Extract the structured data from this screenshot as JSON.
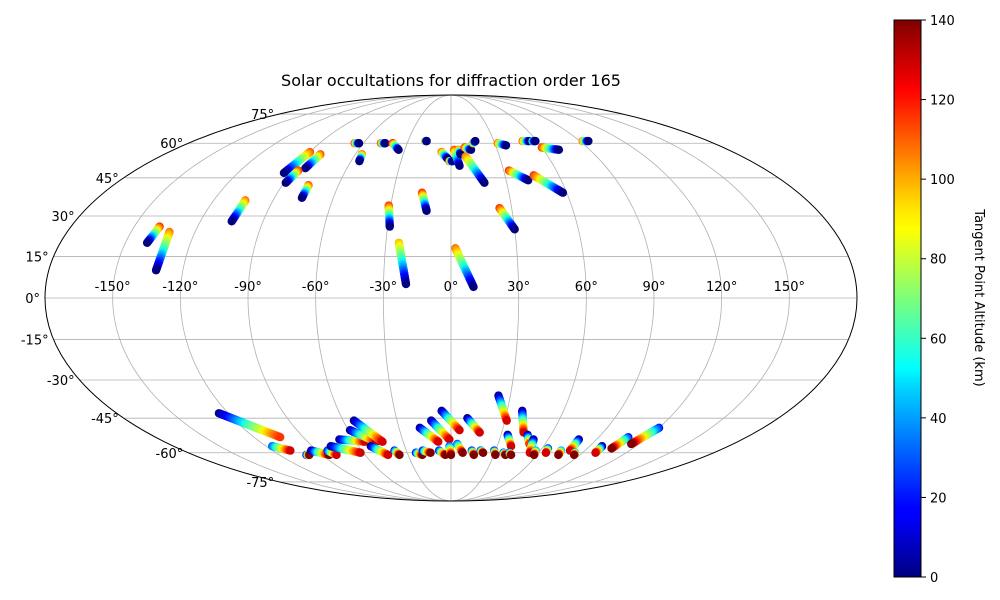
{
  "chart_data": {
    "type": "scatter",
    "projection": "mollweide",
    "title": "Solar occultations for diffraction order 165",
    "lon_tick_labels": [
      "-150°",
      "-120°",
      "-90°",
      "-60°",
      "-30°",
      "0°",
      "30°",
      "60°",
      "90°",
      "120°",
      "150°"
    ],
    "lat_tick_labels": [
      "75°",
      "60°",
      "45°",
      "30°",
      "15°",
      "0°",
      "-15°",
      "-30°",
      "-45°",
      "-60°",
      "-75°"
    ],
    "lon_ticks": [
      -150,
      -120,
      -90,
      -60,
      -30,
      0,
      30,
      60,
      90,
      120,
      150
    ],
    "lat_ticks": [
      75,
      60,
      45,
      30,
      15,
      0,
      -15,
      -30,
      -45,
      -60,
      -75
    ],
    "grid": true,
    "colorbar": {
      "label": "Tangent Point Altitude (km)",
      "colormap": "jet",
      "range": [
        0,
        140
      ],
      "ticks": [
        0,
        20,
        40,
        60,
        80,
        100,
        120,
        140
      ],
      "tick_labels": [
        "0",
        "20",
        "40",
        "60",
        "80",
        "100",
        "120",
        "140"
      ]
    },
    "tracks": [
      {
        "lon0": -138,
        "lat0": 26,
        "lon1": -140,
        "lat1": 20,
        "alt0": 120,
        "alt1": 0
      },
      {
        "lon0": -132,
        "lat0": 24,
        "lon1": -132,
        "lat1": 10,
        "alt0": 110,
        "alt1": 0
      },
      {
        "lon0": -104,
        "lat0": 36,
        "lon1": -105,
        "lat1": 28,
        "alt0": 110,
        "alt1": 0
      },
      {
        "lon0": -90,
        "lat0": 56,
        "lon1": -94,
        "lat1": 47,
        "alt0": 115,
        "alt1": 0
      },
      {
        "lon0": -82,
        "lat0": 55,
        "lon1": -84,
        "lat1": 49,
        "alt0": 115,
        "alt1": 0
      },
      {
        "lon0": -87,
        "lat0": 48,
        "lon1": -89,
        "lat1": 43,
        "alt0": 120,
        "alt1": 0
      },
      {
        "lon0": -76,
        "lat0": 42,
        "lon1": -76,
        "lat1": 37,
        "alt0": 115,
        "alt1": 0
      },
      {
        "lon0": -66,
        "lat0": 60,
        "lon1": -63,
        "lat1": 60,
        "alt0": 120,
        "alt1": 0
      },
      {
        "lon0": -56,
        "lat0": 55,
        "lon1": -55,
        "lat1": 52,
        "alt0": 110,
        "alt1": 0
      },
      {
        "lon0": -48,
        "lat0": 60,
        "lon1": -45,
        "lat1": 60,
        "alt0": 120,
        "alt1": 0
      },
      {
        "lon0": -40,
        "lat0": 60,
        "lon1": -34,
        "lat1": 57,
        "alt0": 120,
        "alt1": 0
      },
      {
        "lon0": -18,
        "lat0": 61,
        "lon1": -17,
        "lat1": 61,
        "alt0": 110,
        "alt1": 0
      },
      {
        "lon0": -31,
        "lat0": 34,
        "lon1": -29,
        "lat1": 26,
        "alt0": 120,
        "alt1": 0
      },
      {
        "lon0": -15,
        "lat0": 39,
        "lon1": -12,
        "lat1": 32,
        "alt0": 120,
        "alt1": 0
      },
      {
        "lon0": -24,
        "lat0": 20,
        "lon1": -20,
        "lat1": 5,
        "alt0": 100,
        "alt1": 0
      },
      {
        "lon0": -6,
        "lat0": 56,
        "lon1": -2,
        "lat1": 53,
        "alt0": 110,
        "alt1": 0
      },
      {
        "lon0": -1,
        "lat0": 52,
        "lon1": 1,
        "lat1": 52,
        "alt0": 120,
        "alt1": 0
      },
      {
        "lon0": 2,
        "lat0": 57,
        "lon1": 5,
        "lat1": 50,
        "alt0": 115,
        "alt1": 0
      },
      {
        "lon0": 5,
        "lat0": 57,
        "lon1": 6,
        "lat1": 55,
        "alt0": 110,
        "alt1": 0
      },
      {
        "lon0": 9,
        "lat0": 58,
        "lon1": 13,
        "lat1": 57,
        "alt0": 120,
        "alt1": 0
      },
      {
        "lon0": 15,
        "lat0": 60,
        "lon1": 17,
        "lat1": 61,
        "alt0": 110,
        "alt1": 0
      },
      {
        "lon0": 9,
        "lat0": 54,
        "lon1": 18,
        "lat1": 43,
        "alt0": 110,
        "alt1": 0
      },
      {
        "lon0": 2,
        "lat0": 18,
        "lon1": 10,
        "lat1": 4,
        "alt0": 110,
        "alt1": 0
      },
      {
        "lon0": 24,
        "lat0": 33,
        "lon1": 30,
        "lat1": 25,
        "alt0": 120,
        "alt1": 0
      },
      {
        "lon0": 32,
        "lat0": 60,
        "lon1": 37,
        "lat1": 59,
        "alt0": 110,
        "alt1": 0
      },
      {
        "lon0": 33,
        "lat0": 48,
        "lon1": 42,
        "lat1": 44,
        "alt0": 120,
        "alt1": 0
      },
      {
        "lon0": 50,
        "lat0": 61,
        "lon1": 55,
        "lat1": 61,
        "alt0": 110,
        "alt1": 0
      },
      {
        "lon0": 57,
        "lat0": 61,
        "lon1": 59,
        "lat1": 61,
        "alt0": 60,
        "alt1": 0
      },
      {
        "lon0": 60,
        "lat0": 58,
        "lon1": 70,
        "lat1": 57,
        "alt0": 120,
        "alt1": 0
      },
      {
        "lon0": 46,
        "lat0": 46,
        "lon1": 58,
        "lat1": 39,
        "alt0": 120,
        "alt1": 0
      },
      {
        "lon0": 92,
        "lat0": 61,
        "lon1": 96,
        "lat1": 61,
        "alt0": 110,
        "alt1": 0
      },
      {
        "lon0": -125,
        "lat0": -43,
        "lon1": -104,
        "lat1": -53,
        "alt0": 0,
        "alt1": 120
      },
      {
        "lon0": -116,
        "lat0": -57,
        "lon1": -108,
        "lat1": -59,
        "alt0": 30,
        "alt1": 130
      },
      {
        "lon0": -101,
        "lat0": -61,
        "lon1": -99,
        "lat1": -61,
        "alt0": 0,
        "alt1": 140
      },
      {
        "lon0": -94,
        "lat0": -59,
        "lon1": -85,
        "lat1": -61,
        "alt0": 0,
        "alt1": 140
      },
      {
        "lon0": -83,
        "lat0": -59,
        "lon1": -80,
        "lat1": -61,
        "alt0": 20,
        "alt1": 130
      },
      {
        "lon0": -78,
        "lat0": -57,
        "lon1": -62,
        "lat1": -60,
        "alt0": 0,
        "alt1": 130
      },
      {
        "lon0": -69,
        "lat0": -54,
        "lon1": -54,
        "lat1": -55,
        "alt0": 0,
        "alt1": 130
      },
      {
        "lon0": -59,
        "lat0": -50,
        "lon1": -47,
        "lat1": -55,
        "alt0": 0,
        "alt1": 130
      },
      {
        "lon0": -54,
        "lat0": -46,
        "lon1": -43,
        "lat1": -55,
        "alt0": 0,
        "alt1": 130
      },
      {
        "lon0": -52,
        "lat0": -57,
        "lon1": -44,
        "lat1": -61,
        "alt0": 0,
        "alt1": 130
      },
      {
        "lon0": -38,
        "lat0": -59,
        "lon1": -36,
        "lat1": -61,
        "alt0": 20,
        "alt1": 140
      },
      {
        "lon0": -24,
        "lat0": -60,
        "lon1": -20,
        "lat1": -61,
        "alt0": 20,
        "alt1": 140
      },
      {
        "lon0": -19,
        "lat0": -59,
        "lon1": -14,
        "lat1": -60,
        "alt0": 20,
        "alt1": 140
      },
      {
        "lon0": -18,
        "lat0": -49,
        "lon1": -8,
        "lat1": -55,
        "alt0": 0,
        "alt1": 130
      },
      {
        "lon0": -11,
        "lat0": -46,
        "lon1": -1,
        "lat1": -54,
        "alt0": 0,
        "alt1": 130
      },
      {
        "lon0": -8,
        "lat0": -59,
        "lon1": -4,
        "lat1": -61,
        "alt0": 20,
        "alt1": 140
      },
      {
        "lon0": -5,
        "lat0": -42,
        "lon1": 5,
        "lat1": -50,
        "alt0": 0,
        "alt1": 130
      },
      {
        "lon0": -1,
        "lat0": -57,
        "lon1": 0,
        "lat1": -61,
        "alt0": 30,
        "alt1": 140
      },
      {
        "lon0": 4,
        "lat0": -56,
        "lon1": 8,
        "lat1": -60,
        "alt0": 30,
        "alt1": 140
      },
      {
        "lon0": 9,
        "lat0": -45,
        "lon1": 17,
        "lat1": -51,
        "alt0": 0,
        "alt1": 130
      },
      {
        "lon0": 14,
        "lat0": -59,
        "lon1": 16,
        "lat1": -61,
        "alt0": 20,
        "alt1": 140
      },
      {
        "lon0": 20,
        "lat0": -59,
        "lon1": 22,
        "lat1": -60,
        "alt0": 20,
        "alt1": 140
      },
      {
        "lon0": 24,
        "lat0": -36,
        "lon1": 31,
        "lat1": -46,
        "alt0": 0,
        "alt1": 130
      },
      {
        "lon0": 29,
        "lat0": -59,
        "lon1": 31,
        "lat1": -61,
        "alt0": 20,
        "alt1": 140
      },
      {
        "lon0": 34,
        "lat0": -52,
        "lon1": 39,
        "lat1": -57,
        "alt0": 0,
        "alt1": 130
      },
      {
        "lon0": 36,
        "lat0": -60,
        "lon1": 38,
        "lat1": -61,
        "alt0": 20,
        "alt1": 140
      },
      {
        "lon0": 38,
        "lat0": -42,
        "lon1": 43,
        "lat1": -51,
        "alt0": 0,
        "alt1": 130
      },
      {
        "lon0": 40,
        "lat0": -60,
        "lon1": 42,
        "lat1": -61,
        "alt0": 20,
        "alt1": 140
      },
      {
        "lon0": 46,
        "lat0": -52,
        "lon1": 50,
        "lat1": -56,
        "alt0": 0,
        "alt1": 120
      },
      {
        "lon0": 51,
        "lat0": -54,
        "lon1": 54,
        "lat1": -60,
        "alt0": 0,
        "alt1": 130
      },
      {
        "lon0": 57,
        "lat0": -59,
        "lon1": 58,
        "lat1": -61,
        "alt0": 40,
        "alt1": 140
      },
      {
        "lon0": 64,
        "lat0": -58,
        "lon1": 65,
        "lat1": -60,
        "alt0": 20,
        "alt1": 130
      },
      {
        "lon0": 74,
        "lat0": -59,
        "lon1": 75,
        "lat1": -61,
        "alt0": 40,
        "alt1": 140
      },
      {
        "lon0": 79,
        "lat0": -54,
        "lon1": 80,
        "lat1": -59,
        "alt0": 0,
        "alt1": 130
      },
      {
        "lon0": 85,
        "lat0": -60,
        "lon1": 86,
        "lat1": -61,
        "alt0": 40,
        "alt1": 140
      },
      {
        "lon0": 98,
        "lat0": -57,
        "lon1": 99,
        "lat1": -60,
        "alt0": 0,
        "alt1": 130
      },
      {
        "lon0": 108,
        "lat0": -53,
        "lon1": 106,
        "lat1": -58,
        "alt0": 20,
        "alt1": 140
      },
      {
        "lon0": 120,
        "lat0": -49,
        "lon1": 115,
        "lat1": -56,
        "alt0": 20,
        "alt1": 140
      }
    ]
  }
}
